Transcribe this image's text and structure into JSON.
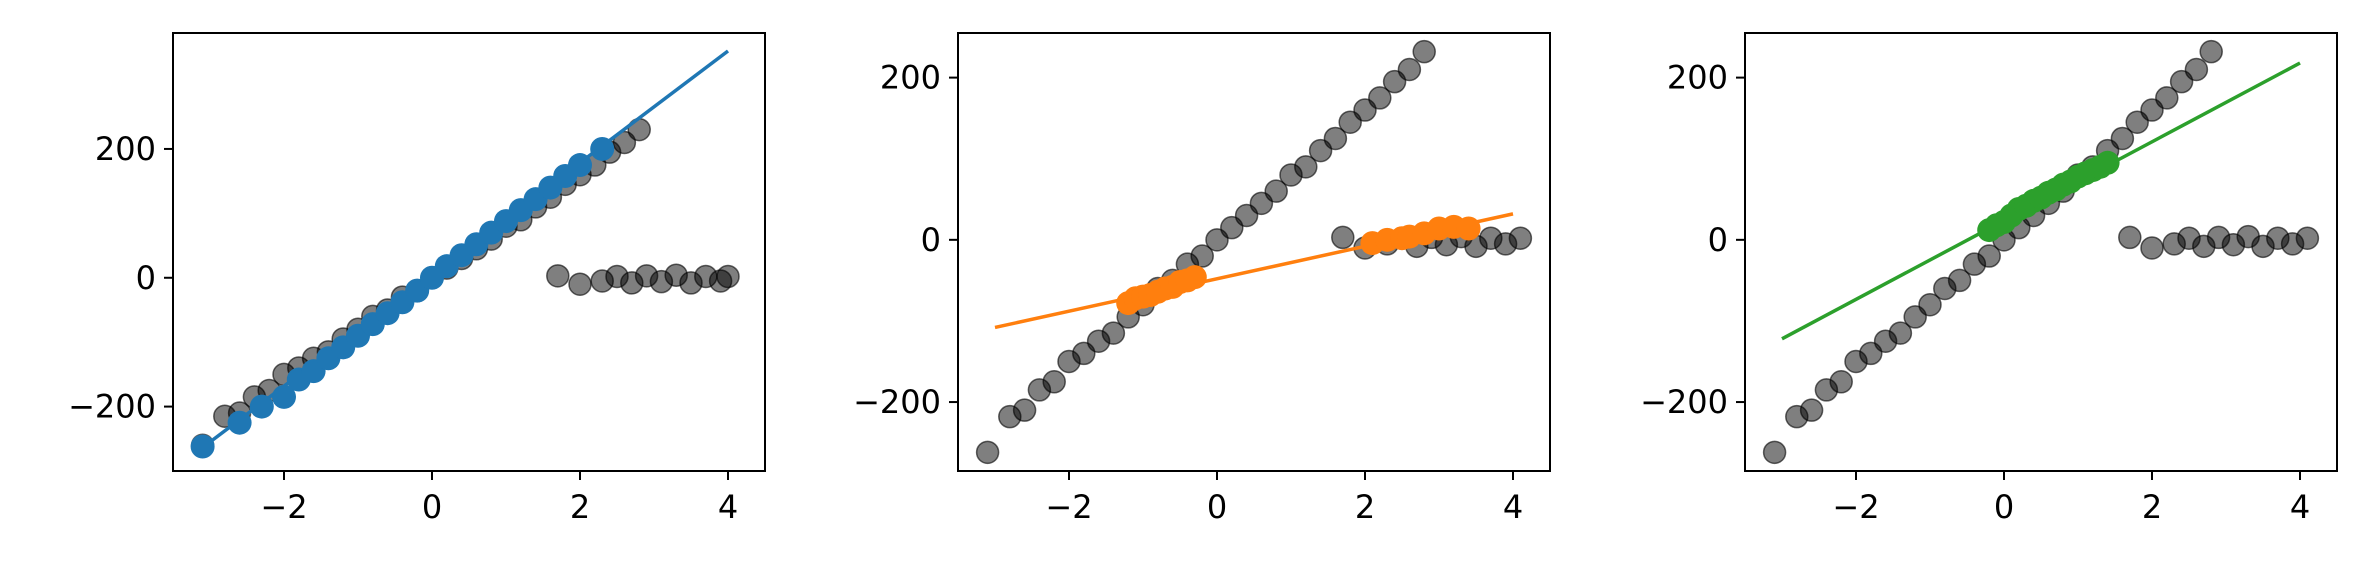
{
  "chart_data": [
    {
      "type": "scatter",
      "xlim": [
        -3.5,
        4.5
      ],
      "ylim": [
        -300,
        380
      ],
      "xticks": [
        -2,
        0,
        2,
        4
      ],
      "xtick_labels": [
        "−2",
        "0",
        "2",
        "4"
      ],
      "yticks": [
        -200,
        0,
        200
      ],
      "ytick_labels": [
        "−200",
        "0",
        "200"
      ],
      "grid": false,
      "series": [
        {
          "kind": "background_scatter",
          "color": "#000000",
          "opacity": 0.5,
          "points": [
            [
              -3.1,
              -260
            ],
            [
              -2.8,
              -215
            ],
            [
              -2.6,
              -210
            ],
            [
              -2.4,
              -185
            ],
            [
              -2.2,
              -175
            ],
            [
              -2,
              -150
            ],
            [
              -1.8,
              -140
            ],
            [
              -1.6,
              -125
            ],
            [
              -1.4,
              -115
            ],
            [
              -1.2,
              -95
            ],
            [
              -1,
              -80
            ],
            [
              -0.8,
              -60
            ],
            [
              -0.6,
              -50
            ],
            [
              -0.4,
              -30
            ],
            [
              -0.2,
              -20
            ],
            [
              0,
              0
            ],
            [
              0.2,
              15
            ],
            [
              0.4,
              30
            ],
            [
              0.6,
              45
            ],
            [
              0.8,
              60
            ],
            [
              1,
              80
            ],
            [
              1.2,
              90
            ],
            [
              1.4,
              110
            ],
            [
              1.6,
              125
            ],
            [
              1.8,
              145
            ],
            [
              2,
              160
            ],
            [
              2.2,
              175
            ],
            [
              2.4,
              195
            ],
            [
              2.6,
              210
            ],
            [
              2.8,
              230
            ],
            [
              1.7,
              3
            ],
            [
              2.0,
              -10
            ],
            [
              2.3,
              -5
            ],
            [
              2.5,
              2
            ],
            [
              2.7,
              -8
            ],
            [
              2.9,
              3
            ],
            [
              3.1,
              -6
            ],
            [
              3.3,
              4
            ],
            [
              3.5,
              -8
            ],
            [
              3.7,
              2
            ],
            [
              3.9,
              -5
            ],
            [
              4.0,
              2
            ]
          ]
        },
        {
          "kind": "fit_line",
          "color": "#1f77b4",
          "x": [
            -3.0,
            4.0
          ],
          "y": [
            -255,
            352
          ]
        },
        {
          "kind": "inlier_scatter",
          "color": "#1f77b4",
          "points": [
            [
              -3.1,
              -262
            ],
            [
              -2.6,
              -225
            ],
            [
              -2.3,
              -200
            ],
            [
              -2,
              -185
            ],
            [
              -1.8,
              -158
            ],
            [
              -1.6,
              -145
            ],
            [
              -1.4,
              -125
            ],
            [
              -1.2,
              -108
            ],
            [
              -1,
              -90
            ],
            [
              -0.8,
              -72
            ],
            [
              -0.6,
              -55
            ],
            [
              -0.4,
              -38
            ],
            [
              -0.2,
              -20
            ],
            [
              0,
              0
            ],
            [
              0.2,
              18
            ],
            [
              0.4,
              35
            ],
            [
              0.6,
              52
            ],
            [
              0.8,
              70
            ],
            [
              1,
              88
            ],
            [
              1.2,
              105
            ],
            [
              1.4,
              122
            ],
            [
              1.6,
              140
            ],
            [
              1.8,
              158
            ],
            [
              2,
              175
            ],
            [
              2.3,
              200
            ]
          ]
        }
      ]
    },
    {
      "type": "scatter",
      "xlim": [
        -3.5,
        4.5
      ],
      "ylim": [
        -285,
        255
      ],
      "xticks": [
        -2,
        0,
        2,
        4
      ],
      "xtick_labels": [
        "−2",
        "0",
        "2",
        "4"
      ],
      "yticks": [
        -200,
        0,
        200
      ],
      "ytick_labels": [
        "−200",
        "0",
        "200"
      ],
      "grid": false,
      "series": [
        {
          "kind": "background_scatter",
          "color": "#000000",
          "opacity": 0.5,
          "points": [
            [
              -3.1,
              -262
            ],
            [
              -2.8,
              -218
            ],
            [
              -2.6,
              -210
            ],
            [
              -2.4,
              -185
            ],
            [
              -2.2,
              -175
            ],
            [
              -2,
              -150
            ],
            [
              -1.8,
              -140
            ],
            [
              -1.6,
              -125
            ],
            [
              -1.4,
              -115
            ],
            [
              -1.2,
              -95
            ],
            [
              -1,
              -80
            ],
            [
              -0.8,
              -60
            ],
            [
              -0.6,
              -50
            ],
            [
              -0.4,
              -30
            ],
            [
              -0.2,
              -20
            ],
            [
              0,
              0
            ],
            [
              0.2,
              15
            ],
            [
              0.4,
              30
            ],
            [
              0.6,
              45
            ],
            [
              0.8,
              60
            ],
            [
              1,
              80
            ],
            [
              1.2,
              90
            ],
            [
              1.4,
              110
            ],
            [
              1.6,
              125
            ],
            [
              1.8,
              145
            ],
            [
              2,
              160
            ],
            [
              2.2,
              175
            ],
            [
              2.4,
              195
            ],
            [
              2.6,
              210
            ],
            [
              2.8,
              232
            ],
            [
              1.7,
              3
            ],
            [
              2.0,
              -10
            ],
            [
              2.3,
              -5
            ],
            [
              2.5,
              2
            ],
            [
              2.7,
              -8
            ],
            [
              2.9,
              3
            ],
            [
              3.1,
              -6
            ],
            [
              3.3,
              4
            ],
            [
              3.5,
              -8
            ],
            [
              3.7,
              2
            ],
            [
              3.9,
              -5
            ],
            [
              4.1,
              2
            ]
          ]
        },
        {
          "kind": "fit_line",
          "color": "#ff7f0e",
          "x": [
            -3.0,
            4.0
          ],
          "y": [
            -108,
            32
          ]
        },
        {
          "kind": "inlier_scatter",
          "color": "#ff7f0e",
          "points": [
            [
              -1.2,
              -78
            ],
            [
              -1.1,
              -72
            ],
            [
              -1,
              -70
            ],
            [
              -0.9,
              -68
            ],
            [
              -0.8,
              -64
            ],
            [
              -0.7,
              -60
            ],
            [
              -0.6,
              -58
            ],
            [
              -0.5,
              -52
            ],
            [
              -0.4,
              -50
            ],
            [
              -0.3,
              -46
            ],
            [
              2.1,
              -4
            ],
            [
              2.3,
              0
            ],
            [
              2.5,
              2
            ],
            [
              2.6,
              4
            ],
            [
              2.8,
              8
            ],
            [
              3.0,
              14
            ],
            [
              3.2,
              16
            ],
            [
              3.4,
              14
            ]
          ]
        }
      ]
    },
    {
      "type": "scatter",
      "xlim": [
        -3.5,
        4.5
      ],
      "ylim": [
        -285,
        255
      ],
      "xticks": [
        -2,
        0,
        2,
        4
      ],
      "xtick_labels": [
        "−2",
        "0",
        "2",
        "4"
      ],
      "yticks": [
        -200,
        0,
        200
      ],
      "ytick_labels": [
        "−200",
        "0",
        "200"
      ],
      "grid": false,
      "series": [
        {
          "kind": "background_scatter",
          "color": "#000000",
          "opacity": 0.5,
          "points": [
            [
              -3.1,
              -262
            ],
            [
              -2.8,
              -218
            ],
            [
              -2.6,
              -210
            ],
            [
              -2.4,
              -185
            ],
            [
              -2.2,
              -175
            ],
            [
              -2,
              -150
            ],
            [
              -1.8,
              -140
            ],
            [
              -1.6,
              -125
            ],
            [
              -1.4,
              -115
            ],
            [
              -1.2,
              -95
            ],
            [
              -1,
              -80
            ],
            [
              -0.8,
              -60
            ],
            [
              -0.6,
              -50
            ],
            [
              -0.4,
              -30
            ],
            [
              -0.2,
              -20
            ],
            [
              0,
              0
            ],
            [
              0.2,
              15
            ],
            [
              0.4,
              30
            ],
            [
              0.6,
              45
            ],
            [
              0.8,
              60
            ],
            [
              1,
              80
            ],
            [
              1.2,
              90
            ],
            [
              1.4,
              110
            ],
            [
              1.6,
              125
            ],
            [
              1.8,
              145
            ],
            [
              2,
              160
            ],
            [
              2.2,
              175
            ],
            [
              2.4,
              195
            ],
            [
              2.6,
              210
            ],
            [
              2.8,
              232
            ],
            [
              1.7,
              3
            ],
            [
              2.0,
              -10
            ],
            [
              2.3,
              -5
            ],
            [
              2.5,
              2
            ],
            [
              2.7,
              -8
            ],
            [
              2.9,
              3
            ],
            [
              3.1,
              -6
            ],
            [
              3.3,
              4
            ],
            [
              3.5,
              -8
            ],
            [
              3.7,
              2
            ],
            [
              3.9,
              -5
            ],
            [
              4.1,
              2
            ]
          ]
        },
        {
          "kind": "fit_line",
          "color": "#2ca02c",
          "x": [
            -3.0,
            4.0
          ],
          "y": [
            -122,
            218
          ]
        },
        {
          "kind": "inlier_scatter",
          "color": "#2ca02c",
          "points": [
            [
              -0.2,
              12
            ],
            [
              -0.1,
              18
            ],
            [
              0,
              22
            ],
            [
              0.1,
              30
            ],
            [
              0.2,
              38
            ],
            [
              0.3,
              42
            ],
            [
              0.4,
              48
            ],
            [
              0.5,
              52
            ],
            [
              0.6,
              58
            ],
            [
              0.7,
              62
            ],
            [
              0.8,
              68
            ],
            [
              0.9,
              72
            ],
            [
              1,
              78
            ],
            [
              1.1,
              82
            ],
            [
              1.2,
              86
            ],
            [
              1.3,
              90
            ],
            [
              1.4,
              95
            ]
          ]
        }
      ]
    }
  ]
}
